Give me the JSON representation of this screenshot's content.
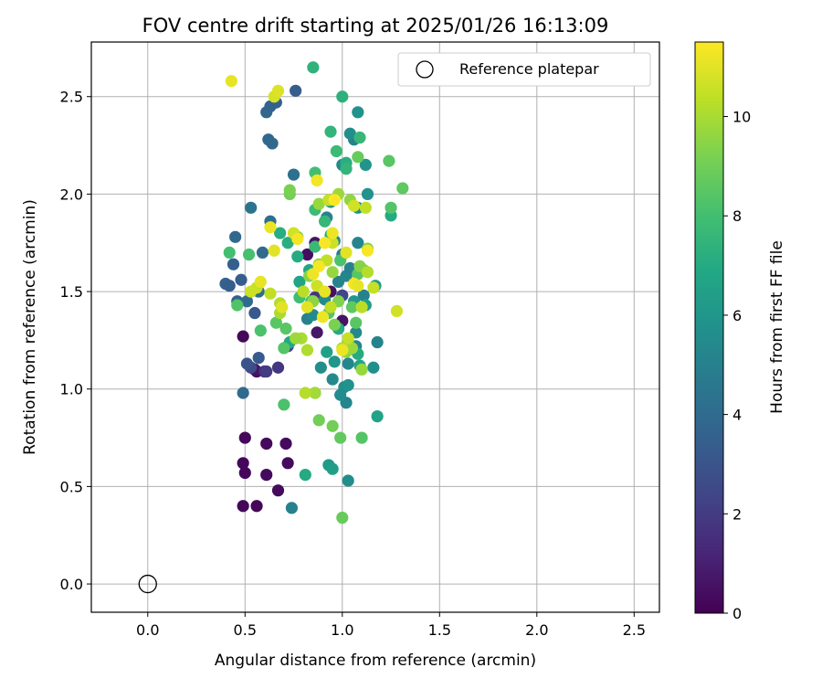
{
  "chart_data": {
    "type": "scatter",
    "title": "FOV centre drift starting at 2025/01/26 16:13:09",
    "xlabel": "Angular distance from reference (arcmin)",
    "ylabel": "Rotation from reference (arcmin)",
    "xlim": [
      -0.29,
      2.63
    ],
    "ylim": [
      -0.145,
      2.78
    ],
    "xticks": [
      0.0,
      0.5,
      1.0,
      1.5,
      2.0,
      2.5
    ],
    "yticks": [
      0.0,
      0.5,
      1.0,
      1.5,
      2.0,
      2.5
    ],
    "xtick_labels": [
      "0.0",
      "0.5",
      "1.0",
      "1.5",
      "2.0",
      "2.5"
    ],
    "ytick_labels": [
      "0.0",
      "0.5",
      "1.0",
      "1.5",
      "2.0",
      "2.5"
    ],
    "grid": true,
    "legend": {
      "position": "top-right",
      "entries": [
        "Reference platepar"
      ]
    },
    "colorbar": {
      "label": "Hours from first FF file",
      "range": [
        0,
        11.5
      ],
      "ticks": [
        0,
        2,
        4,
        6,
        8,
        10
      ],
      "tick_labels": [
        "0",
        "2",
        "4",
        "6",
        "8",
        "10"
      ],
      "colormap": "viridis"
    },
    "reference_point": {
      "x": 0.0,
      "y": 0.0
    },
    "series": [
      {
        "points": [
          [
            0.49,
            1.27,
            0.2
          ],
          [
            0.5,
            0.75,
            0.2
          ],
          [
            0.49,
            0.62,
            0.2
          ],
          [
            0.5,
            0.57,
            0.2
          ],
          [
            0.49,
            0.4,
            0.2
          ],
          [
            0.56,
            0.4,
            0.2
          ],
          [
            0.61,
            0.72,
            0.3
          ],
          [
            0.61,
            0.56,
            0.3
          ],
          [
            0.67,
            0.48,
            0.3
          ],
          [
            0.71,
            0.72,
            0.3
          ],
          [
            0.72,
            0.62,
            0.3
          ],
          [
            0.56,
            1.09,
            0.4
          ],
          [
            0.55,
            1.1,
            0.6
          ],
          [
            0.86,
            1.75,
            0.6
          ],
          [
            0.82,
            1.69,
            0.4
          ],
          [
            0.94,
            1.5,
            0.5
          ],
          [
            1.0,
            1.35,
            0.6
          ],
          [
            0.87,
            1.29,
            0.7
          ],
          [
            0.6,
            1.09,
            1.5
          ],
          [
            0.67,
            1.11,
            1.8
          ],
          [
            0.61,
            1.09,
            2.0
          ],
          [
            0.53,
            1.11,
            2.6
          ],
          [
            0.86,
            1.47,
            1.8
          ],
          [
            0.98,
            1.31,
            1.9
          ],
          [
            1.0,
            1.48,
            2.4
          ],
          [
            0.72,
            1.22,
            2.3
          ],
          [
            0.51,
            1.13,
            3.0
          ],
          [
            0.57,
            1.16,
            3.3
          ],
          [
            0.49,
            0.98,
            4.0
          ],
          [
            0.55,
            1.39,
            3.2
          ],
          [
            0.48,
            1.56,
            3.4
          ],
          [
            0.44,
            1.64,
            3.5
          ],
          [
            0.4,
            1.54,
            3.6
          ],
          [
            0.42,
            1.53,
            3.4
          ],
          [
            0.46,
            1.45,
            3.6
          ],
          [
            0.51,
            1.45,
            4.0
          ],
          [
            0.57,
            1.5,
            4.1
          ],
          [
            0.59,
            1.7,
            4.0
          ],
          [
            0.63,
            1.86,
            4.2
          ],
          [
            0.53,
            1.93,
            4.4
          ],
          [
            0.45,
            1.78,
            3.9
          ],
          [
            0.62,
            2.28,
            3.8
          ],
          [
            0.64,
            2.26,
            3.9
          ],
          [
            0.61,
            2.42,
            3.8
          ],
          [
            0.63,
            2.45,
            3.7
          ],
          [
            0.66,
            2.47,
            3.6
          ],
          [
            0.76,
            2.53,
            3.4
          ],
          [
            0.75,
            2.1,
            4.3
          ],
          [
            0.74,
            0.39,
            5.0
          ],
          [
            1.03,
            0.53,
            5.6
          ],
          [
            1.02,
            0.93,
            5.2
          ],
          [
            1.01,
            1.01,
            5.6
          ],
          [
            1.03,
            1.02,
            5.8
          ],
          [
            0.99,
            0.97,
            5.5
          ],
          [
            0.95,
            1.05,
            5.4
          ],
          [
            1.03,
            1.13,
            5.2
          ],
          [
            1.07,
            1.22,
            5.3
          ],
          [
            1.18,
            1.24,
            5.1
          ],
          [
            1.16,
            1.11,
            5.7
          ],
          [
            0.89,
            1.11,
            5.6
          ],
          [
            0.82,
            1.36,
            5.0
          ],
          [
            0.85,
            1.38,
            5.4
          ],
          [
            0.91,
            1.46,
            5.4
          ],
          [
            0.98,
            1.55,
            5.1
          ],
          [
            1.07,
            1.29,
            5.4
          ],
          [
            1.11,
            1.48,
            5.0
          ],
          [
            1.02,
            1.58,
            5.2
          ],
          [
            1.04,
            1.62,
            5.0
          ],
          [
            1.0,
            1.69,
            4.8
          ],
          [
            1.08,
            1.75,
            5.2
          ],
          [
            0.96,
            1.76,
            5.4
          ],
          [
            0.92,
            1.88,
            5.1
          ],
          [
            1.0,
            2.15,
            5.4
          ],
          [
            1.06,
            2.28,
            5.0
          ],
          [
            1.04,
            2.31,
            5.6
          ],
          [
            1.08,
            2.42,
            5.8
          ],
          [
            1.12,
            2.15,
            5.9
          ],
          [
            1.13,
            2.0,
            5.8
          ],
          [
            1.08,
            1.93,
            5.7
          ],
          [
            0.94,
            1.96,
            6.0
          ],
          [
            1.17,
            1.53,
            6.3
          ],
          [
            1.06,
            1.45,
            6.0
          ],
          [
            1.12,
            1.43,
            6.4
          ],
          [
            1.18,
            0.86,
            6.6
          ],
          [
            0.93,
            0.61,
            6.2
          ],
          [
            0.95,
            0.59,
            6.4
          ],
          [
            0.92,
            1.19,
            6.5
          ],
          [
            0.96,
            1.14,
            6.0
          ],
          [
            1.09,
            1.12,
            6.8
          ],
          [
            1.08,
            1.18,
            7.0
          ],
          [
            0.78,
            1.55,
            6.7
          ],
          [
            0.83,
            1.61,
            6.8
          ],
          [
            0.73,
            1.24,
            6.9
          ],
          [
            0.81,
            0.56,
            7.0
          ],
          [
            0.86,
            0.98,
            6.8
          ],
          [
            0.98,
            1.31,
            7.0
          ],
          [
            0.68,
            1.8,
            7.1
          ],
          [
            0.72,
            1.75,
            7.2
          ],
          [
            0.77,
            1.68,
            7.0
          ],
          [
            0.94,
            1.79,
            7.0
          ],
          [
            1.02,
            2.16,
            7.2
          ],
          [
            1.25,
            1.89,
            7.0
          ],
          [
            1.0,
            2.5,
            7.3
          ],
          [
            0.85,
            2.65,
            7.4
          ],
          [
            0.94,
            2.32,
            7.5
          ],
          [
            1.02,
            2.13,
            7.5
          ],
          [
            1.09,
            2.29,
            7.6
          ],
          [
            0.97,
            2.22,
            7.8
          ],
          [
            0.86,
            2.11,
            8.0
          ],
          [
            0.86,
            1.92,
            7.8
          ],
          [
            0.91,
            1.86,
            7.6
          ],
          [
            0.86,
            1.73,
            7.7
          ],
          [
            0.78,
            1.47,
            7.9
          ],
          [
            0.84,
            1.45,
            8.0
          ],
          [
            0.52,
            1.69,
            8.1
          ],
          [
            0.42,
            1.7,
            8.0
          ],
          [
            0.46,
            1.43,
            8.3
          ],
          [
            0.58,
            1.3,
            8.2
          ],
          [
            0.66,
            1.34,
            8.5
          ],
          [
            0.71,
            1.31,
            8.5
          ],
          [
            0.7,
            1.21,
            8.4
          ],
          [
            0.7,
            0.92,
            8.2
          ],
          [
            0.93,
            1.39,
            8.4
          ],
          [
            0.99,
            1.66,
            8.2
          ],
          [
            1.11,
            1.61,
            8.6
          ],
          [
            1.24,
            2.17,
            8.5
          ],
          [
            1.25,
            1.93,
            8.4
          ],
          [
            1.31,
            2.03,
            8.6
          ],
          [
            1.08,
            2.19,
            8.8
          ],
          [
            1.08,
            1.59,
            8.5
          ],
          [
            1.05,
            1.42,
            8.6
          ],
          [
            1.07,
            1.34,
            8.5
          ],
          [
            1.03,
            1.24,
            8.3
          ],
          [
            1.1,
            0.75,
            8.4
          ],
          [
            0.99,
            0.75,
            8.7
          ],
          [
            0.95,
            0.81,
            9.0
          ],
          [
            1.0,
            0.34,
            8.8
          ],
          [
            0.88,
            0.84,
            9.0
          ],
          [
            0.73,
            2.0,
            9.0
          ],
          [
            0.73,
            2.02,
            9.2
          ],
          [
            0.77,
            1.78,
            9.3
          ],
          [
            0.83,
            1.58,
            9.4
          ],
          [
            0.88,
            1.64,
            9.6
          ],
          [
            0.85,
            1.45,
            9.5
          ],
          [
            0.95,
            1.6,
            9.7
          ],
          [
            0.98,
            1.45,
            9.3
          ],
          [
            0.96,
            1.33,
            9.2
          ],
          [
            1.02,
            1.19,
            9.6
          ],
          [
            1.05,
            1.21,
            9.8
          ],
          [
            1.1,
            1.1,
            9.7
          ],
          [
            1.13,
            1.72,
            9.3
          ],
          [
            1.09,
            1.63,
            9.4
          ],
          [
            1.04,
            1.97,
            9.6
          ],
          [
            0.98,
            2.0,
            9.8
          ],
          [
            0.88,
            1.95,
            9.7
          ],
          [
            0.79,
            1.26,
            10.0
          ],
          [
            0.82,
            1.2,
            10.1
          ],
          [
            0.86,
            0.98,
            9.9
          ],
          [
            0.81,
            0.98,
            10.2
          ],
          [
            0.76,
            1.26,
            9.8
          ],
          [
            0.68,
            1.44,
            10.2
          ],
          [
            0.68,
            1.39,
            10.0
          ],
          [
            0.63,
            1.49,
            10.4
          ],
          [
            0.56,
            1.52,
            10.5
          ],
          [
            0.53,
            1.5,
            10.6
          ],
          [
            0.8,
            1.5,
            10.3
          ],
          [
            0.87,
            1.53,
            10.6
          ],
          [
            0.94,
            1.42,
            10.4
          ],
          [
            1.03,
            1.26,
            10.5
          ],
          [
            1.0,
            1.21,
            10.2
          ],
          [
            1.1,
            1.42,
            10.3
          ],
          [
            1.13,
            1.6,
            10.2
          ],
          [
            1.16,
            1.52,
            10.5
          ],
          [
            1.28,
            1.4,
            10.7
          ],
          [
            1.12,
            1.93,
            10.4
          ],
          [
            1.06,
            1.94,
            10.7
          ],
          [
            0.93,
            1.97,
            10.5
          ],
          [
            0.95,
            1.75,
            10.6
          ],
          [
            0.92,
            1.66,
            10.4
          ],
          [
            0.75,
            1.8,
            10.7
          ],
          [
            0.65,
            2.5,
            10.8
          ],
          [
            0.67,
            2.53,
            10.9
          ],
          [
            0.43,
            2.58,
            11.1
          ],
          [
            0.65,
            1.71,
            11.0
          ],
          [
            0.63,
            1.83,
            11.2
          ],
          [
            0.58,
            1.55,
            11.1
          ],
          [
            0.69,
            1.42,
            11.0
          ],
          [
            0.77,
            1.77,
            11.3
          ],
          [
            0.85,
            1.59,
            11.2
          ],
          [
            0.88,
            1.63,
            11.4
          ],
          [
            0.91,
            1.5,
            11.1
          ],
          [
            0.9,
            1.37,
            11.2
          ],
          [
            0.82,
            1.42,
            11.0
          ],
          [
            0.87,
            2.07,
            11.3
          ],
          [
            0.91,
            1.75,
            11.4
          ],
          [
            0.95,
            1.8,
            11.2
          ],
          [
            0.96,
            1.97,
            11.5
          ],
          [
            1.06,
            1.54,
            11.3
          ],
          [
            1.08,
            1.53,
            11.1
          ],
          [
            1.0,
            1.2,
            11.2
          ],
          [
            1.02,
            1.7,
            11.0
          ],
          [
            1.13,
            1.71,
            11.4
          ]
        ]
      }
    ]
  }
}
